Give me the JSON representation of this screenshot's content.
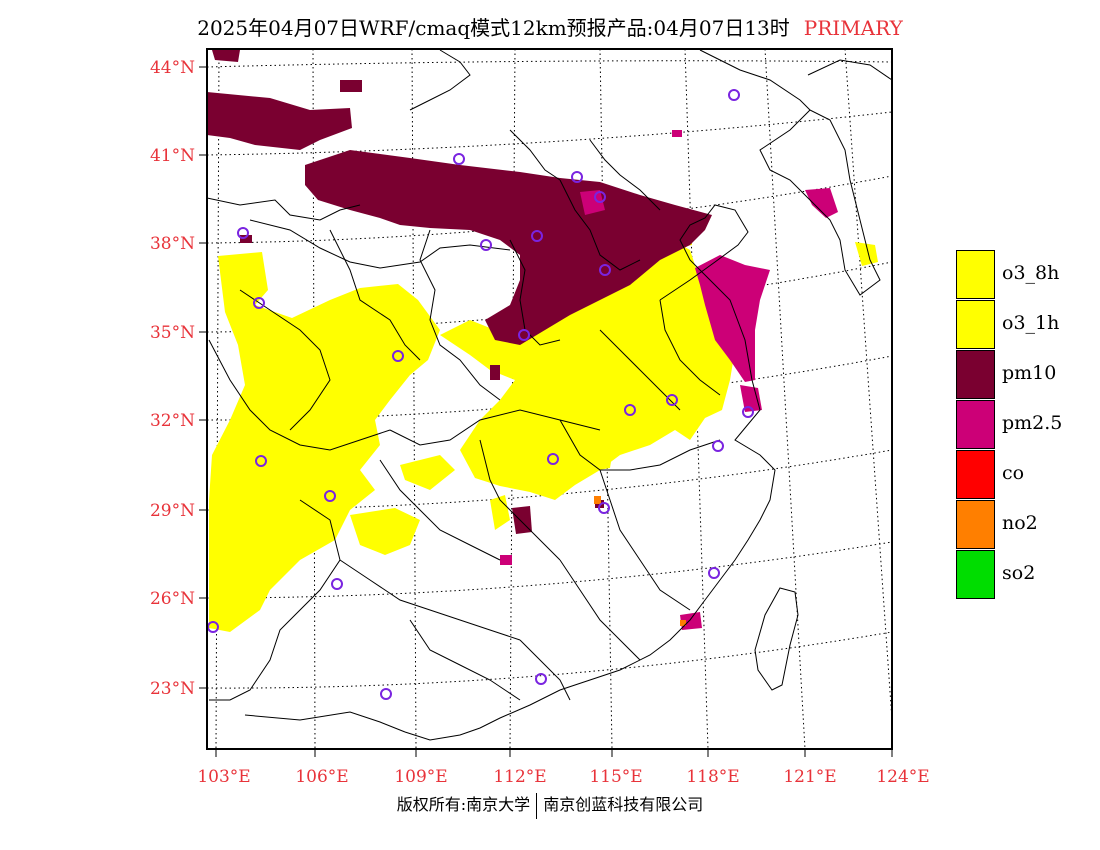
{
  "header": {
    "title": "2025年04月07日WRF/cmaq模式12km预报产品:04月07日13时",
    "tag": "PRIMARY"
  },
  "axes": {
    "lat_ticks": [
      "44°N",
      "41°N",
      "38°N",
      "35°N",
      "32°N",
      "29°N",
      "26°N",
      "23°N"
    ],
    "lon_ticks": [
      "103°E",
      "106°E",
      "109°E",
      "112°E",
      "115°E",
      "118°E",
      "121°E",
      "124°E"
    ]
  },
  "legend": {
    "items": [
      {
        "label": "o3_8h",
        "color": "#ffff00"
      },
      {
        "label": "o3_1h",
        "color": "#ffff00"
      },
      {
        "label": "pm10",
        "color": "#7a0030"
      },
      {
        "label": "pm2.5",
        "color": "#cc0077"
      },
      {
        "label": "co",
        "color": "#ff0000"
      },
      {
        "label": "no2",
        "color": "#ff7f00"
      },
      {
        "label": "so2",
        "color": "#00dd00"
      }
    ]
  },
  "footer": {
    "left": "版权所有:南京大学",
    "right": "南京创蓝科技有限公司"
  }
}
